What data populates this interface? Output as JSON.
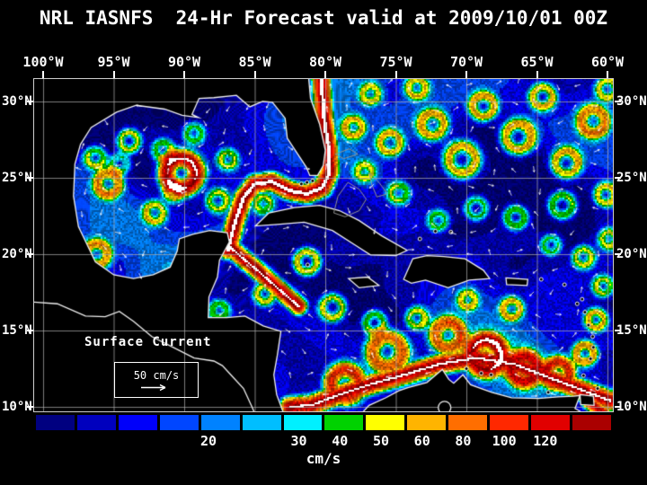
{
  "title": "NRL IASNFS  24-Hr Forecast valid at 2009/10/01 00Z",
  "map": {
    "lon_ticks": [
      "100°W",
      "95°W",
      "90°W",
      "85°W",
      "80°W",
      "75°W",
      "70°W",
      "65°W",
      "60°W"
    ],
    "lat_ticks_left": [
      "30°N",
      "25°N",
      "20°N",
      "15°N",
      "10°N"
    ],
    "lat_ticks_right": [
      "30°N",
      "25°N",
      "20°N",
      "15°N",
      "10°N"
    ],
    "overlay_label": "Surface Current",
    "scale_label": "50 cm/s",
    "icons": {
      "scale_arrow": "right-arrow"
    }
  },
  "colorbar": {
    "unit": "cm/s",
    "tick_labels": [
      "20",
      "30",
      "40",
      "50",
      "60",
      "80",
      "100",
      "120"
    ],
    "segment_colors": [
      "#000080",
      "#0000be",
      "#0000fa",
      "#0046ff",
      "#0082ff",
      "#00beff",
      "#00f0ff",
      "#00d200",
      "#ffff00",
      "#ffb400",
      "#ff6e00",
      "#ff2800",
      "#e10000",
      "#aa0000"
    ]
  },
  "colors": {
    "background": "#000000",
    "text": "#ffffff",
    "grid": "#aaaaaa",
    "coastline": "#f0f0f0",
    "land": "#000000"
  }
}
